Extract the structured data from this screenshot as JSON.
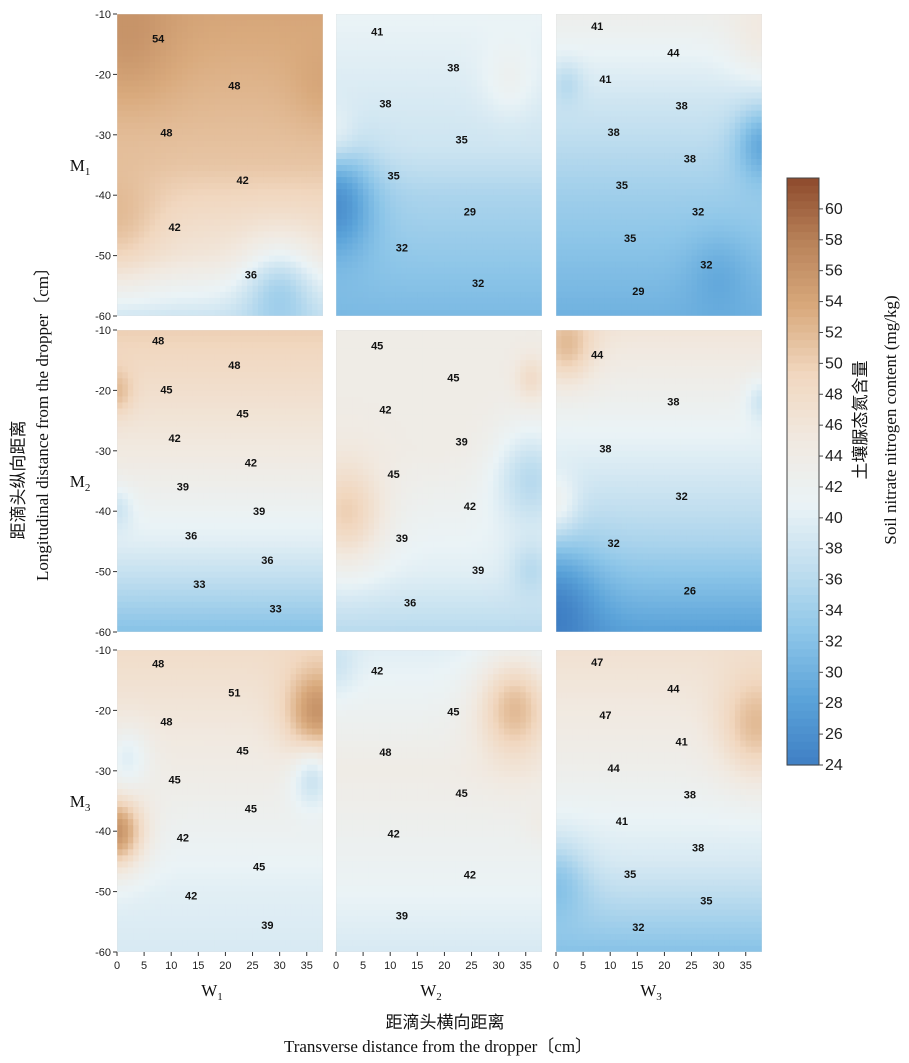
{
  "chart_data": {
    "type": "heatmap",
    "subtype": "contour",
    "x_axis": {
      "label_zh": "距滴头横向距离",
      "label_en": "Transverse distance from the dropper〔cm〕",
      "ticks": [
        "0",
        "5",
        "10",
        "15",
        "20",
        "25",
        "30",
        "35"
      ],
      "range": [
        0,
        38
      ]
    },
    "y_axis": {
      "label_zh": "距滴头纵向距离",
      "label_en": "Longitudinal distance from the dropper〔cm〕",
      "ticks": [
        "-10",
        "-20",
        "-30",
        "-40",
        "-50",
        "-60"
      ],
      "range": [
        -60,
        -10
      ]
    },
    "columns": [
      "W1",
      "W2",
      "W3"
    ],
    "rows": [
      "M1",
      "M2",
      "M3"
    ],
    "colorbar": {
      "label_zh": "土壤脲态氮含量",
      "label_en": "Soil nitrate nitrogen content (mg/kg)",
      "ticks": [
        "60",
        "58",
        "56",
        "54",
        "52",
        "50",
        "48",
        "46",
        "44",
        "42",
        "40",
        "38",
        "36",
        "34",
        "32",
        "30",
        "28",
        "26",
        "24"
      ],
      "range": [
        24,
        62
      ],
      "colors": [
        "#3f7fc4",
        "#5ba3d9",
        "#8cc5e8",
        "#c0deef",
        "#eaf3f6",
        "#f1e9e0",
        "#f1d7bf",
        "#d9aa7d",
        "#b9835a",
        "#8d4a2c"
      ]
    },
    "panels": [
      {
        "row": "M1",
        "col": "W1",
        "contour_labels": [
          "54",
          "48",
          "48",
          "42",
          "42",
          "36"
        ],
        "value_range": [
          34,
          56
        ],
        "description_values": {
          "top_left": 56,
          "center_left": 52,
          "bottom": 36
        }
      },
      {
        "row": "M1",
        "col": "W2",
        "contour_labels": [
          "41",
          "38",
          "38",
          "35",
          "35",
          "29",
          "32",
          "32"
        ],
        "value_range": [
          26,
          42
        ]
      },
      {
        "row": "M1",
        "col": "W3",
        "contour_labels": [
          "41",
          "44",
          "41",
          "38",
          "38",
          "38",
          "35",
          "32",
          "35",
          "32",
          "29"
        ],
        "value_range": [
          28,
          45
        ]
      },
      {
        "row": "M2",
        "col": "W1",
        "contour_labels": [
          "48",
          "48",
          "45",
          "45",
          "42",
          "42",
          "39",
          "39",
          "36",
          "36",
          "33",
          "33"
        ],
        "value_range": [
          31,
          51
        ]
      },
      {
        "row": "M2",
        "col": "W2",
        "contour_labels": [
          "45",
          "45",
          "42",
          "39",
          "45",
          "42",
          "39",
          "39",
          "36"
        ],
        "value_range": [
          34,
          50
        ]
      },
      {
        "row": "M2",
        "col": "W3",
        "contour_labels": [
          "44",
          "38",
          "38",
          "32",
          "32",
          "26"
        ],
        "value_range": [
          24,
          52
        ]
      },
      {
        "row": "M3",
        "col": "W1",
        "contour_labels": [
          "48",
          "51",
          "48",
          "45",
          "45",
          "45",
          "42",
          "45",
          "42",
          "39"
        ],
        "value_range": [
          36,
          56
        ]
      },
      {
        "row": "M3",
        "col": "W2",
        "contour_labels": [
          "42",
          "45",
          "48",
          "45",
          "42",
          "42",
          "39"
        ],
        "value_range": [
          36,
          52
        ]
      },
      {
        "row": "M3",
        "col": "W3",
        "contour_labels": [
          "47",
          "44",
          "47",
          "41",
          "44",
          "38",
          "41",
          "38",
          "35",
          "35",
          "32"
        ],
        "value_range": [
          30,
          52
        ]
      }
    ]
  }
}
